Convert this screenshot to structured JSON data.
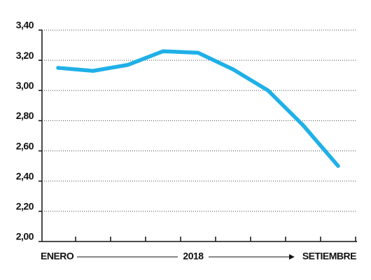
{
  "chart_data": {
    "type": "line",
    "categories": [
      "ENERO",
      null,
      null,
      null,
      null,
      null,
      null,
      null,
      "SETIEMBRE"
    ],
    "xlabel": "2018",
    "series": [
      {
        "color": "#1fb0e8",
        "values": [
          3.15,
          3.13,
          3.17,
          3.26,
          3.25,
          3.14,
          3.0,
          2.77,
          2.5
        ]
      }
    ],
    "ylim": [
      2.0,
      3.4
    ],
    "yticks": [
      {
        "value": 2.0,
        "label": "2,00"
      },
      {
        "value": 2.2,
        "label": "2,20"
      },
      {
        "value": 2.4,
        "label": "2,40"
      },
      {
        "value": 2.6,
        "label": "2,60"
      },
      {
        "value": 2.8,
        "label": "2,80"
      },
      {
        "value": 3.0,
        "label": "3,00"
      },
      {
        "value": 3.2,
        "label": "3,20"
      },
      {
        "value": 3.4,
        "label": "3,40"
      }
    ],
    "grid": true
  }
}
